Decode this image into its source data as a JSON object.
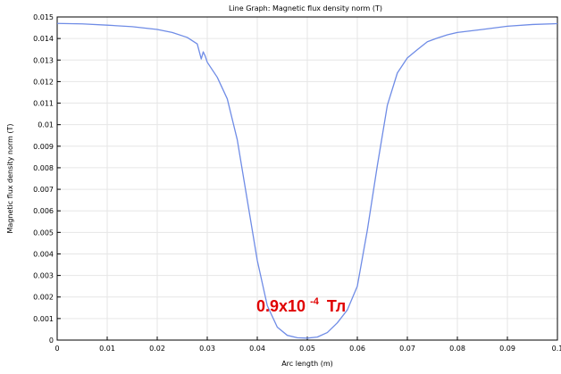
{
  "chart_data": {
    "type": "line",
    "title": "Line Graph: Magnetic flux density norm (T)",
    "xlabel": "Arc length (m)",
    "ylabel": "Magnetic flux density norm (T)",
    "xlim": [
      0,
      0.1
    ],
    "ylim": [
      0,
      0.015
    ],
    "x_ticks": [
      "0",
      "0.01",
      "0.02",
      "0.03",
      "0.04",
      "0.05",
      "0.06",
      "0.07",
      "0.08",
      "0.09",
      "0.1"
    ],
    "y_ticks": [
      "0",
      "0.001",
      "0.002",
      "0.003",
      "0.004",
      "0.005",
      "0.006",
      "0.007",
      "0.008",
      "0.009",
      "0.01",
      "0.011",
      "0.012",
      "0.013",
      "0.014",
      "0.015"
    ],
    "grid": true,
    "series": [
      {
        "color": "#6f8ce6",
        "x": [
          0,
          0.005,
          0.01,
          0.015,
          0.02,
          0.023,
          0.026,
          0.028,
          0.0288,
          0.0292,
          0.0296,
          0.03,
          0.032,
          0.034,
          0.036,
          0.038,
          0.04,
          0.042,
          0.044,
          0.046,
          0.048,
          0.05,
          0.052,
          0.054,
          0.056,
          0.058,
          0.06,
          0.062,
          0.064,
          0.066,
          0.068,
          0.07,
          0.072,
          0.074,
          0.076,
          0.078,
          0.08,
          0.085,
          0.09,
          0.095,
          0.1
        ],
        "y": [
          0.0147,
          0.01468,
          0.01462,
          0.01455,
          0.01442,
          0.01428,
          0.01405,
          0.01375,
          0.01305,
          0.01338,
          0.01318,
          0.0129,
          0.0122,
          0.0112,
          0.0093,
          0.0065,
          0.0037,
          0.0016,
          0.0006,
          0.00022,
          0.00011,
          9e-05,
          0.00014,
          0.00035,
          0.0008,
          0.0014,
          0.0025,
          0.0051,
          0.0081,
          0.0109,
          0.0124,
          0.0131,
          0.01348,
          0.01385,
          0.01402,
          0.01417,
          0.01428,
          0.01442,
          0.01457,
          0.01465,
          0.01469
        ]
      }
    ],
    "annotation": {
      "base": "0.9x10",
      "exponent": "-4",
      "unit": "Тл",
      "color": "#e00000"
    }
  }
}
